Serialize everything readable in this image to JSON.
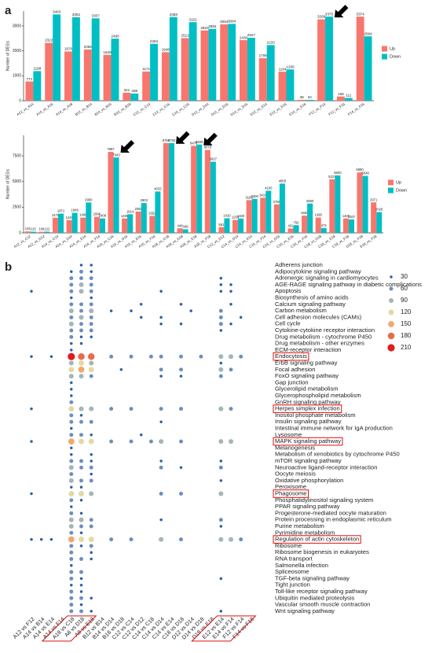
{
  "chart_data": [
    {
      "type": "bar",
      "panel_label": "a",
      "y_label": "Number of DEGs",
      "categories": [
        "A12_vs_A14",
        "A14_vs_A16",
        "A14_vs_A18",
        "B12_vs_B14",
        "B14_vs_B16",
        "B16_vs_B18",
        "C12_vs_C14",
        "C12_vs_C16",
        "C14_vs_C16",
        "D12_vs_D14",
        "D12_vs_D16",
        "D14_vs_D16",
        "E12_vs_E14",
        "E12_vs_E16",
        "E14_vs_E16",
        "F12_vs_F14",
        "F12_vs_F16",
        "F14_vs_F16"
      ],
      "series": [
        {
          "name": "Up",
          "color": "#f8766d",
          "values": [
            771,
            2322,
            1976,
            2056,
            1840,
            321,
            1171,
            1948,
            2512,
            2820,
            3064,
            2430,
            1706,
            1164,
            36,
            3268,
            168,
            3374
          ]
        },
        {
          "name": "Down",
          "color": "#00bfc4",
          "values": [
            1188,
            3463,
            3352,
            3307,
            2490,
            288,
            2284,
            3358,
            3152,
            2884,
            3084,
            2527,
            2233,
            1256,
            34,
            3375,
            111,
            2584
          ]
        }
      ],
      "ylim": [
        0,
        3600
      ],
      "yticks": [
        0,
        1000,
        2000,
        3000
      ]
    },
    {
      "type": "bar",
      "y_label": "Number of DEGs",
      "categories": [
        "A12_vs_C12",
        "A12_vs_D12",
        "A14_vs_C14",
        "A14_vs_D14",
        "A14_vs_E14",
        "A14_vs_F14",
        "A16_vs_C16",
        "A16_vs_D16",
        "A16_vs_E16",
        "A16_vs_F16",
        "A18_vs_C18",
        "A18_vs_D18",
        "A18_vs_E18",
        "A18_vs_F18",
        "C12_vs_D12",
        "C14_vs_D14",
        "C14_vs_E14",
        "C14_vs_F14",
        "C16_vs_D16",
        "C16_vs_E16",
        "C16_vs_F16",
        "C18_vs_D18",
        "C18_vs_E18",
        "C18_vs_F18",
        "D18_vs_F18",
        "E18_vs_F18"
      ],
      "series": [
        {
          "name": "Up",
          "color": "#f8766d",
          "values": [
            145,
            109,
            1476,
            1249,
            1488,
            1568,
            7887,
            1406,
            2082,
            1652,
            8750,
            448,
            8476,
            8078,
            561,
            1258,
            3189,
            3416,
            2780,
            431,
            1683,
            1490,
            5227,
            1405,
            5890,
            2971
          ]
        },
        {
          "name": "Down",
          "color": "#00bfc4",
          "values": [
            115,
            122,
            1871,
            1949,
            2960,
            1408,
            7343,
            1814,
            2903,
            4033,
            8750,
            346,
            8600,
            6927,
            1420,
            1400,
            3300,
            4100,
            4800,
            750,
            2860,
            474,
            5600,
            1307,
            5549,
            2026
          ]
        }
      ],
      "ylim": [
        0,
        9500
      ],
      "yticks": [
        0,
        2500,
        5000,
        7500
      ]
    },
    {
      "type": "dot",
      "panel_label": "b",
      "x_categories": [
        "A12 vs F12",
        "A14 vs B14",
        "A14 vs E14",
        "A14 vs F14",
        "A18 vs C18",
        "A8 vs D18",
        "A8 vs E18",
        "B12 vs B14",
        "B14 vs D14",
        "B18 vs D18",
        "C12 vs C14",
        "C12 vs D12",
        "C14 vs C18",
        "C14 vs D14",
        "C14 vs E14",
        "C18 vs D18",
        "D12 vs D14",
        "D14 vs D18",
        "D18 vs E18",
        "E12 vs E14",
        "E14 vs F14",
        "F12 vs F14",
        "F14 vs F18"
      ],
      "y_categories": [
        "Adherens junction",
        "Adipocytokine signaling pathway",
        "Adrenergic signaling in cardiomyocytes",
        "AGE-RAGE signaling pathway in diabetic complications",
        "Apoptosis",
        "Biosynthesis of amino acids",
        "Calcium signaling pathway",
        "Carbon metabolism",
        "Cell adhesion molecules (CAMs)",
        "Cell cycle",
        "Cytokine-cytokine receptor interaction",
        "Drug metabolism - cytochrome P450",
        "Drug metabolism - other enzymes",
        "ECM-receptor interaction",
        "Endocytosis",
        "ErbB signaling pathway",
        "Focal adhesion",
        "FoxO signaling pathway",
        "Gap junction",
        "Glycerolipid metabolism",
        "Glycerophospholipid metabolism",
        "GnRH signaling pathway",
        "Herpes simplex infection",
        "Inositol phosphate metabolism",
        "Insulin signaling pathway",
        "Intestinal immune network for IgA production",
        "Lysosome",
        "MAPK signaling pathway",
        "Melanogenesis",
        "Metabolism of xenobiotics by cytochrome P450",
        "mTOR signaling pathway",
        "Neuroactive ligand-receptor interaction",
        "Oocyte meiosis",
        "Oxidative phosphorylation",
        "Peroxisome",
        "Phagosome",
        "Phosphatidylinositol signaling system",
        "PPAR signaling pathway",
        "Progesterone-mediated oocyte maturation",
        "Protein processing in endoplasmic reticulum",
        "Purine metabolism",
        "Pyrimidine metabolism",
        "Regulation of actin cytoskeleton",
        "Ribosome",
        "Ribosome biogenesis in eukaryotes",
        "RNA transport",
        "Salmonella infection",
        "Spliceosome",
        "TGF-beta signaling pathway",
        "Tight junction",
        "Toll-like receptor signaling pathway",
        "Ubiquitin mediated proteolysis",
        "Vascular smooth muscle contraction",
        "Wnt signaling pathway"
      ],
      "points": [
        [
          5,
          0,
          30
        ],
        [
          6,
          0,
          30
        ],
        [
          4,
          1,
          30
        ],
        [
          5,
          1,
          60
        ],
        [
          6,
          1,
          30
        ],
        [
          4,
          2,
          60
        ],
        [
          5,
          2,
          60
        ],
        [
          6,
          2,
          60
        ],
        [
          19,
          2,
          30
        ],
        [
          4,
          3,
          60
        ],
        [
          5,
          3,
          90
        ],
        [
          6,
          3,
          60
        ],
        [
          19,
          3,
          30
        ],
        [
          20,
          3,
          30
        ],
        [
          0,
          4,
          30
        ],
        [
          4,
          4,
          60
        ],
        [
          5,
          4,
          90
        ],
        [
          6,
          4,
          60
        ],
        [
          13,
          4,
          30
        ],
        [
          19,
          4,
          30
        ],
        [
          20,
          4,
          30
        ],
        [
          4,
          5,
          30
        ],
        [
          6,
          5,
          30
        ],
        [
          4,
          6,
          60
        ],
        [
          5,
          6,
          60
        ],
        [
          6,
          6,
          60
        ],
        [
          11,
          6,
          30
        ],
        [
          15,
          6,
          30
        ],
        [
          20,
          6,
          30
        ],
        [
          4,
          7,
          90
        ],
        [
          5,
          7,
          60
        ],
        [
          6,
          7,
          90
        ],
        [
          8,
          7,
          30
        ],
        [
          10,
          7,
          30
        ],
        [
          16,
          7,
          30
        ],
        [
          19,
          7,
          60
        ],
        [
          4,
          8,
          60
        ],
        [
          5,
          8,
          90
        ],
        [
          6,
          8,
          60
        ],
        [
          11,
          8,
          30
        ],
        [
          13,
          8,
          30
        ],
        [
          19,
          8,
          60
        ],
        [
          21,
          8,
          30
        ],
        [
          4,
          9,
          90
        ],
        [
          5,
          9,
          60
        ],
        [
          6,
          9,
          60
        ],
        [
          13,
          9,
          30
        ],
        [
          15,
          9,
          30
        ],
        [
          19,
          9,
          60
        ],
        [
          20,
          9,
          30
        ],
        [
          4,
          10,
          60
        ],
        [
          5,
          10,
          60
        ],
        [
          6,
          10,
          60
        ],
        [
          19,
          10,
          30
        ],
        [
          4,
          11,
          60
        ],
        [
          5,
          11,
          30
        ],
        [
          6,
          11,
          30
        ],
        [
          4,
          12,
          30
        ],
        [
          5,
          12,
          30
        ],
        [
          4,
          13,
          30
        ],
        [
          0,
          14,
          30
        ],
        [
          2,
          14,
          30
        ],
        [
          4,
          14,
          210
        ],
        [
          5,
          14,
          180
        ],
        [
          6,
          14,
          180
        ],
        [
          8,
          14,
          60
        ],
        [
          10,
          14,
          60
        ],
        [
          12,
          14,
          60
        ],
        [
          13,
          14,
          60
        ],
        [
          15,
          14,
          60
        ],
        [
          17,
          14,
          60
        ],
        [
          19,
          14,
          90
        ],
        [
          20,
          14,
          90
        ],
        [
          21,
          14,
          60
        ],
        [
          4,
          15,
          90
        ],
        [
          5,
          15,
          120
        ],
        [
          6,
          15,
          90
        ],
        [
          19,
          15,
          30
        ],
        [
          4,
          16,
          120
        ],
        [
          5,
          16,
          150
        ],
        [
          6,
          16,
          120
        ],
        [
          9,
          16,
          30
        ],
        [
          13,
          16,
          60
        ],
        [
          15,
          16,
          60
        ],
        [
          19,
          16,
          90
        ],
        [
          20,
          16,
          60
        ],
        [
          4,
          17,
          90
        ],
        [
          5,
          17,
          90
        ],
        [
          6,
          17,
          60
        ],
        [
          13,
          17,
          30
        ],
        [
          15,
          17,
          30
        ],
        [
          19,
          17,
          60
        ],
        [
          4,
          18,
          30
        ],
        [
          4,
          19,
          30
        ],
        [
          4,
          20,
          30
        ],
        [
          4,
          21,
          60
        ],
        [
          0,
          22,
          30
        ],
        [
          4,
          22,
          120
        ],
        [
          5,
          22,
          90
        ],
        [
          6,
          22,
          90
        ],
        [
          8,
          22,
          60
        ],
        [
          10,
          22,
          60
        ],
        [
          13,
          22,
          60
        ],
        [
          15,
          22,
          60
        ],
        [
          19,
          22,
          90
        ],
        [
          20,
          22,
          60
        ],
        [
          4,
          23,
          60
        ],
        [
          5,
          23,
          30
        ],
        [
          4,
          24,
          60
        ],
        [
          5,
          24,
          60
        ],
        [
          6,
          24,
          60
        ],
        [
          13,
          24,
          30
        ],
        [
          4,
          25,
          30
        ],
        [
          4,
          26,
          60
        ],
        [
          5,
          26,
          60
        ],
        [
          6,
          26,
          30
        ],
        [
          11,
          26,
          30
        ],
        [
          0,
          27,
          30
        ],
        [
          4,
          27,
          150
        ],
        [
          5,
          27,
          120
        ],
        [
          6,
          27,
          120
        ],
        [
          8,
          27,
          60
        ],
        [
          10,
          27,
          60
        ],
        [
          12,
          27,
          60
        ],
        [
          13,
          27,
          90
        ],
        [
          15,
          27,
          60
        ],
        [
          19,
          27,
          90
        ],
        [
          20,
          27,
          90
        ],
        [
          4,
          28,
          30
        ],
        [
          4,
          29,
          30
        ],
        [
          6,
          29,
          30
        ],
        [
          4,
          30,
          60
        ],
        [
          5,
          30,
          60
        ],
        [
          6,
          30,
          30
        ],
        [
          13,
          30,
          30
        ],
        [
          19,
          30,
          30
        ],
        [
          4,
          31,
          90
        ],
        [
          5,
          31,
          60
        ],
        [
          6,
          31,
          60
        ],
        [
          13,
          31,
          60
        ],
        [
          15,
          31,
          30
        ],
        [
          19,
          31,
          60
        ],
        [
          4,
          32,
          60
        ],
        [
          6,
          32,
          30
        ],
        [
          4,
          33,
          90
        ],
        [
          5,
          33,
          60
        ],
        [
          6,
          33,
          60
        ],
        [
          19,
          33,
          30
        ],
        [
          4,
          34,
          30
        ],
        [
          5,
          34,
          30
        ],
        [
          0,
          35,
          30
        ],
        [
          4,
          35,
          120
        ],
        [
          5,
          35,
          120
        ],
        [
          6,
          35,
          90
        ],
        [
          13,
          35,
          60
        ],
        [
          15,
          35,
          60
        ],
        [
          19,
          35,
          90
        ],
        [
          4,
          36,
          60
        ],
        [
          5,
          36,
          30
        ],
        [
          4,
          37,
          30
        ],
        [
          4,
          38,
          60
        ],
        [
          5,
          38,
          30
        ],
        [
          4,
          39,
          90
        ],
        [
          5,
          39,
          90
        ],
        [
          6,
          39,
          60
        ],
        [
          13,
          39,
          30
        ],
        [
          19,
          39,
          60
        ],
        [
          4,
          40,
          90
        ],
        [
          5,
          40,
          60
        ],
        [
          6,
          40,
          60
        ],
        [
          19,
          40,
          30
        ],
        [
          4,
          41,
          60
        ],
        [
          5,
          41,
          30
        ],
        [
          0,
          42,
          30
        ],
        [
          1,
          42,
          30
        ],
        [
          2,
          42,
          30
        ],
        [
          4,
          42,
          150
        ],
        [
          5,
          42,
          120
        ],
        [
          6,
          42,
          120
        ],
        [
          8,
          42,
          60
        ],
        [
          10,
          42,
          60
        ],
        [
          13,
          42,
          90
        ],
        [
          15,
          42,
          60
        ],
        [
          19,
          42,
          90
        ],
        [
          20,
          42,
          90
        ],
        [
          21,
          42,
          60
        ],
        [
          4,
          43,
          60
        ],
        [
          5,
          43,
          30
        ],
        [
          6,
          43,
          60
        ],
        [
          4,
          44,
          60
        ],
        [
          6,
          44,
          30
        ],
        [
          4,
          45,
          60
        ],
        [
          5,
          45,
          60
        ],
        [
          6,
          45,
          30
        ],
        [
          4,
          46,
          30
        ],
        [
          4,
          47,
          60
        ],
        [
          5,
          47,
          60
        ],
        [
          4,
          48,
          60
        ],
        [
          5,
          48,
          30
        ],
        [
          19,
          48,
          30
        ],
        [
          4,
          49,
          30
        ],
        [
          5,
          49,
          30
        ],
        [
          4,
          50,
          60
        ],
        [
          5,
          50,
          30
        ],
        [
          4,
          51,
          60
        ],
        [
          5,
          51,
          60
        ],
        [
          6,
          51,
          30
        ],
        [
          4,
          52,
          60
        ],
        [
          5,
          52,
          30
        ],
        [
          4,
          53,
          60
        ],
        [
          5,
          53,
          60
        ],
        [
          6,
          53,
          30
        ],
        [
          19,
          53,
          30
        ]
      ],
      "size_legend": {
        "values": [
          30,
          60,
          90,
          120,
          150,
          180,
          210
        ],
        "colors": [
          "#2b5fa8",
          "#6a8fbe",
          "#a3b5b8",
          "#e6d8a2",
          "#f2a66e",
          "#ea6a4b",
          "#e31a1c"
        ]
      },
      "highlighted_rows": [
        14,
        22,
        27,
        35,
        42
      ],
      "highlighted_columns": [
        [
          4,
          6
        ],
        [
          19,
          22
        ]
      ]
    }
  ]
}
